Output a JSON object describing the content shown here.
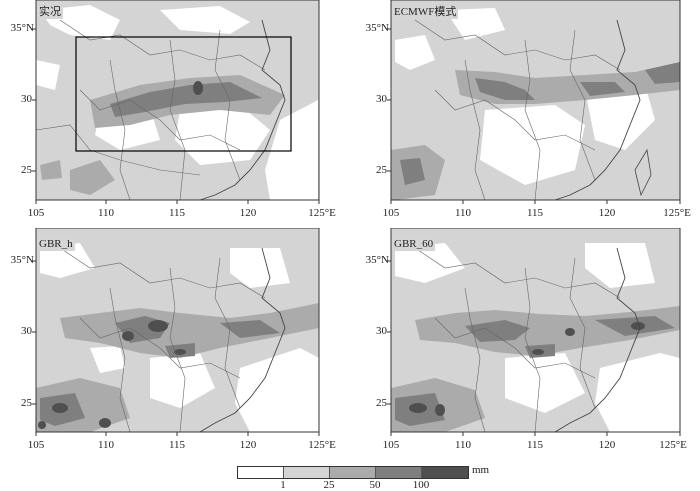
{
  "panels": [
    {
      "title": "实况",
      "x_ticks": [
        "105",
        "110",
        "115",
        "120",
        "125°E"
      ],
      "y_ticks": [
        "35°N",
        "30",
        "25"
      ],
      "has_box": true
    },
    {
      "title": "ECMWF模式",
      "x_ticks": [
        "105",
        "110",
        "115",
        "120",
        "125°E"
      ],
      "y_ticks": [
        "35°N",
        "30",
        "25"
      ],
      "has_box": false
    },
    {
      "title": "GBR_h",
      "x_ticks": [
        "105",
        "110",
        "115",
        "120",
        "125°E"
      ],
      "y_ticks": [
        "35°N",
        "30",
        "25"
      ],
      "has_box": false
    },
    {
      "title": "GBR_60",
      "x_ticks": [
        "105",
        "110",
        "115",
        "120",
        "125°E"
      ],
      "y_ticks": [
        "35°N",
        "30",
        "25"
      ],
      "has_box": false
    }
  ],
  "legend": {
    "labels": [
      "1",
      "25",
      "50",
      "100"
    ],
    "unit": "mm",
    "colors": [
      "#ffffff",
      "#d4d4d4",
      "#ababab",
      "#7f7f7f",
      "#4f4f4f"
    ]
  }
}
